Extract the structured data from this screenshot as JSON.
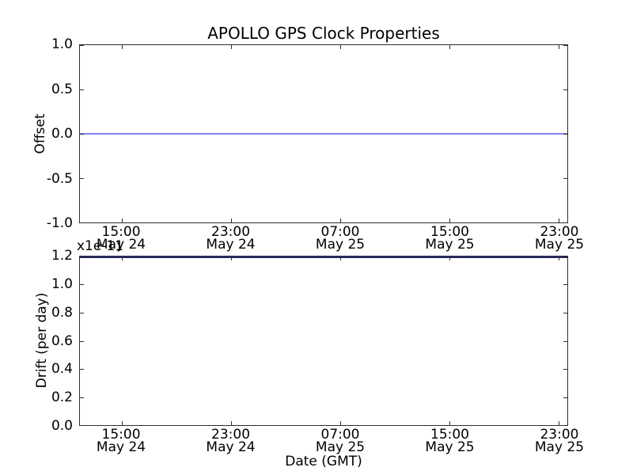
{
  "figure": {
    "title": "APOLLO GPS Clock Properties"
  },
  "colors": {
    "background": "#ffffff",
    "spine": "#2e2e2e",
    "text": "#000000",
    "offset_line_blue": "#8282f2",
    "drift_line_blended_navy": "#29295c",
    "plot_line_base": "#0000ff"
  },
  "top_plot": {
    "ylabel": "Offset",
    "ytick_labels": [
      "1.0",
      "0.5",
      "0.0",
      "-0.5",
      "-1.0"
    ],
    "xtick_labels": [
      [
        "15:00",
        "May 24"
      ],
      [
        "23:00",
        "May 24"
      ],
      [
        "07:00",
        "May 25"
      ],
      [
        "15:00",
        "May 25"
      ],
      [
        "23:00",
        "May 25"
      ]
    ]
  },
  "bottom_plot": {
    "ylabel": "Drift (per day)",
    "offset_text": "x1e-11",
    "xlabel": "Date (GMT)",
    "ytick_labels": [
      "1.2",
      "1.0",
      "0.8",
      "0.6",
      "0.4",
      "0.2",
      "0.0"
    ],
    "xtick_labels": [
      [
        "15:00",
        "May 24"
      ],
      [
        "23:00",
        "May 24"
      ],
      [
        "07:00",
        "May 25"
      ],
      [
        "15:00",
        "May 25"
      ],
      [
        "23:00",
        "May 25"
      ]
    ]
  },
  "chart_data": [
    {
      "type": "line",
      "title": "APOLLO GPS Clock Properties",
      "ylabel": "Offset",
      "xlabel": "",
      "ylim": [
        -1.0,
        1.0
      ],
      "yticks": [
        1.0,
        0.5,
        0.0,
        -0.5,
        -1.0
      ],
      "xtick_labels": [
        "15:00 May 24",
        "23:00 May 24",
        "07:00 May 25",
        "15:00 May 25",
        "23:00 May 25"
      ],
      "grid": false,
      "legend": false,
      "series": [
        {
          "name": "offset",
          "color": "#0000ff",
          "constant_value": 0.0,
          "x": [
            "15:00 May 24",
            "23:00 May 24",
            "07:00 May 25",
            "15:00 May 25",
            "23:00 May 25"
          ],
          "values": [
            0.0,
            0.0,
            0.0,
            0.0,
            0.0
          ]
        }
      ]
    },
    {
      "type": "line",
      "title": "",
      "ylabel": "Drift (per day)",
      "y_offset_text": "x1e-11",
      "xlabel": "Date (GMT)",
      "ylim": [
        0.0,
        1.2e-11
      ],
      "yticks": [
        1.2e-11,
        1e-11,
        8e-12,
        6e-12,
        4e-12,
        2e-12,
        0.0
      ],
      "xtick_labels": [
        "15:00 May 24",
        "23:00 May 24",
        "07:00 May 25",
        "15:00 May 25",
        "23:00 May 25"
      ],
      "grid": false,
      "legend": false,
      "series": [
        {
          "name": "drift",
          "color": "#0000ff",
          "constant_value": 1.2e-11,
          "x": [
            "15:00 May 24",
            "23:00 May 24",
            "07:00 May 25",
            "15:00 May 25",
            "23:00 May 25"
          ],
          "values": [
            1.2e-11,
            1.2e-11,
            1.2e-11,
            1.2e-11,
            1.2e-11
          ]
        }
      ]
    }
  ]
}
